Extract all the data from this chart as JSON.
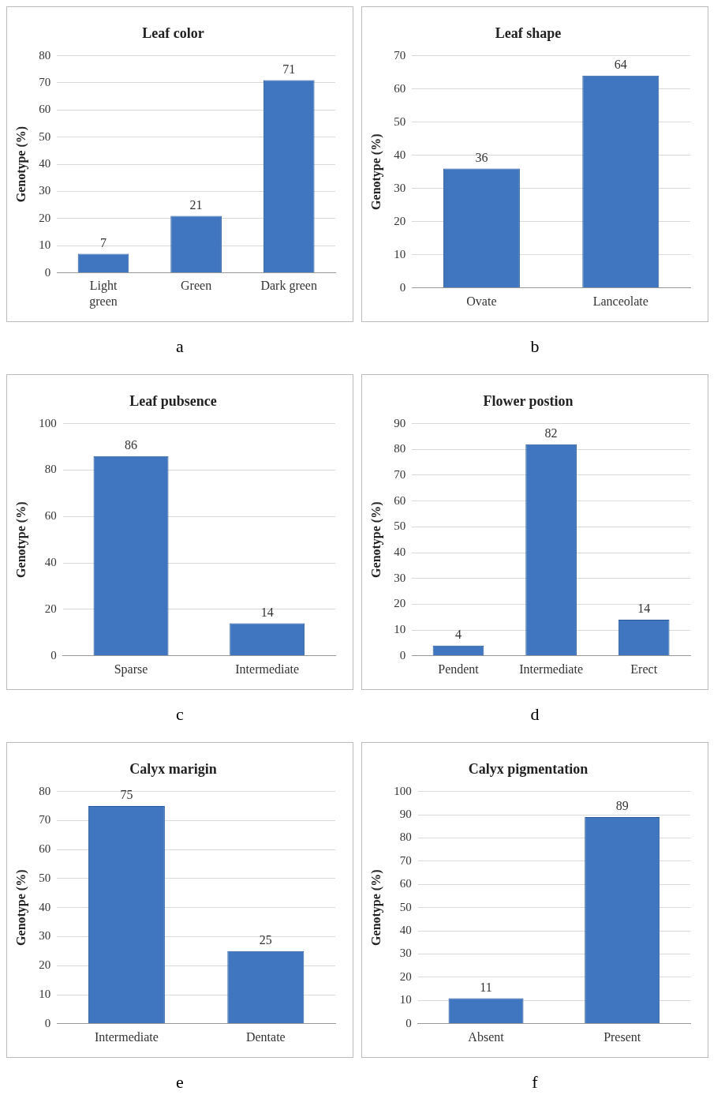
{
  "chart_data": [
    {
      "type": "bar",
      "title": "Leaf color",
      "ylabel": "Genotype (%)",
      "categories": [
        "Light green",
        "Green",
        "Dark green"
      ],
      "values": [
        7,
        21,
        71
      ],
      "color": "#3f76bf",
      "ylim": [
        0,
        80
      ],
      "yticks": [
        0,
        10,
        20,
        30,
        40,
        50,
        60,
        70,
        80
      ],
      "grid": "y",
      "data_labels": true,
      "legend": false,
      "annotations": [
        "a"
      ]
    },
    {
      "type": "bar",
      "title": "Leaf shape",
      "ylabel": "Genotype (%)",
      "categories": [
        "Ovate",
        "Lanceolate"
      ],
      "values": [
        36,
        64
      ],
      "color": "#3f76bf",
      "ylim": [
        0,
        70
      ],
      "yticks": [
        0,
        10,
        20,
        30,
        40,
        50,
        60,
        70
      ],
      "grid": "y",
      "data_labels": true,
      "legend": false,
      "annotations": [
        "b"
      ]
    },
    {
      "type": "bar",
      "title": "Leaf pubsence",
      "ylabel": "Genotype (%)",
      "categories": [
        "Sparse",
        "Intermediate"
      ],
      "values": [
        86,
        14
      ],
      "color": "#3f76bf",
      "ylim": [
        0,
        100
      ],
      "yticks": [
        0,
        20,
        40,
        60,
        80,
        100
      ],
      "grid": "y",
      "data_labels": true,
      "legend": false,
      "annotations": [
        "c"
      ]
    },
    {
      "type": "bar",
      "title": "Flower postion",
      "ylabel": "Genotype (%)",
      "categories": [
        "Pendent",
        "Intermediate",
        "Erect"
      ],
      "values": [
        4,
        82,
        14
      ],
      "color": "#3f76bf",
      "ylim": [
        0,
        90
      ],
      "yticks": [
        0,
        10,
        20,
        30,
        40,
        50,
        60,
        70,
        80,
        90
      ],
      "grid": "y",
      "data_labels": true,
      "legend": false,
      "annotations": [
        "d"
      ]
    },
    {
      "type": "bar",
      "title": "Calyx marigin",
      "ylabel": "Genotype (%)",
      "categories": [
        "Intermediate",
        "Dentate"
      ],
      "values": [
        75,
        25
      ],
      "color": "#3f76bf",
      "ylim": [
        0,
        80
      ],
      "yticks": [
        0,
        10,
        20,
        30,
        40,
        50,
        60,
        70,
        80
      ],
      "grid": "y",
      "data_labels": true,
      "legend": false,
      "annotations": [
        "e"
      ]
    },
    {
      "type": "bar",
      "title": "Calyx pigmentation",
      "ylabel": "Genotype (%)",
      "categories": [
        "Absent",
        "Present"
      ],
      "values": [
        11,
        89
      ],
      "color": "#3f76bf",
      "ylim": [
        0,
        100
      ],
      "yticks": [
        0,
        10,
        20,
        30,
        40,
        50,
        60,
        70,
        80,
        90,
        100
      ],
      "grid": "y",
      "data_labels": true,
      "legend": false,
      "annotations": [
        "f"
      ]
    }
  ]
}
